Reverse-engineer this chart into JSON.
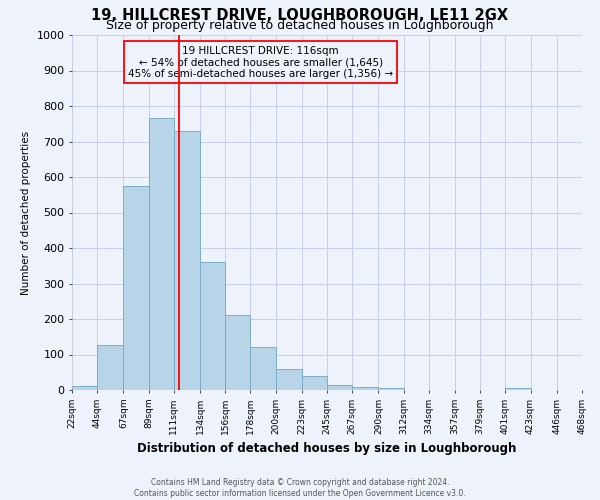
{
  "title": "19, HILLCREST DRIVE, LOUGHBOROUGH, LE11 2GX",
  "subtitle": "Size of property relative to detached houses in Loughborough",
  "xlabel": "Distribution of detached houses by size in Loughborough",
  "ylabel": "Number of detached properties",
  "footnote1": "Contains HM Land Registry data © Crown copyright and database right 2024.",
  "footnote2": "Contains public sector information licensed under the Open Government Licence v3.0.",
  "bin_edges": [
    22,
    44,
    67,
    89,
    111,
    134,
    156,
    178,
    200,
    223,
    245,
    267,
    290,
    312,
    334,
    357,
    379,
    401,
    423,
    446,
    468
  ],
  "bin_labels": [
    "22sqm",
    "44sqm",
    "67sqm",
    "89sqm",
    "111sqm",
    "134sqm",
    "156sqm",
    "178sqm",
    "200sqm",
    "223sqm",
    "245sqm",
    "267sqm",
    "290sqm",
    "312sqm",
    "334sqm",
    "357sqm",
    "379sqm",
    "401sqm",
    "423sqm",
    "446sqm",
    "468sqm"
  ],
  "counts": [
    10,
    128,
    575,
    765,
    730,
    360,
    210,
    120,
    60,
    40,
    15,
    8,
    5,
    0,
    0,
    0,
    0,
    5,
    0,
    0
  ],
  "bar_color": "#b8d4e8",
  "bar_edge_color": "#7aaec8",
  "vline_x": 116,
  "vline_color": "red",
  "annotation_title": "19 HILLCREST DRIVE: 116sqm",
  "annotation_line1": "← 54% of detached houses are smaller (1,645)",
  "annotation_line2": "45% of semi-detached houses are larger (1,356) →",
  "annotation_box_edge_color": "red",
  "ylim": [
    0,
    1000
  ],
  "background_color": "#eef2fb",
  "grid_color": "#c5cfe8",
  "title_fontsize": 10.5,
  "subtitle_fontsize": 9
}
